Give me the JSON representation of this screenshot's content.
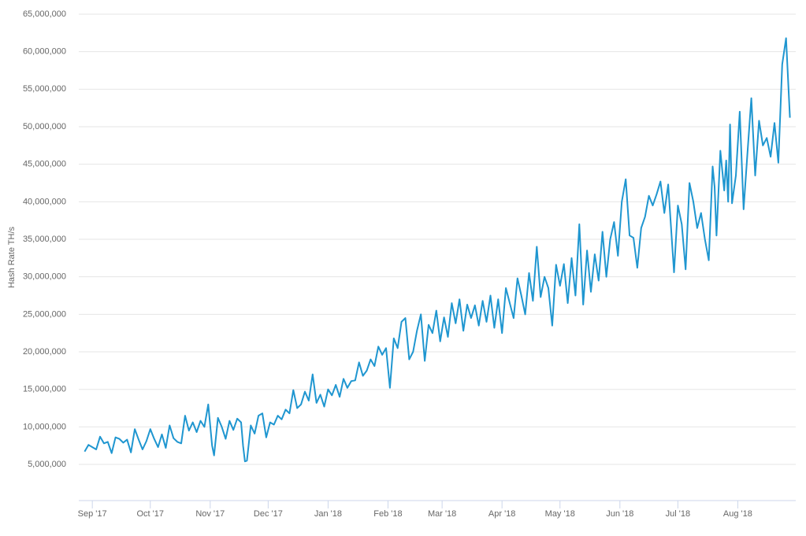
{
  "chart_data": {
    "type": "line",
    "y_label": "Hash Rate TH/s",
    "x": [
      -4,
      -2,
      0,
      2,
      4,
      6,
      8,
      10,
      12,
      14,
      16,
      18,
      20,
      22,
      24,
      26,
      28,
      30,
      32,
      34,
      36,
      38,
      40,
      42,
      44,
      46,
      48,
      50,
      52,
      54,
      56,
      58,
      60,
      62,
      63,
      65,
      67,
      69,
      71,
      73,
      75,
      77,
      78,
      79,
      80,
      82,
      84,
      86,
      88,
      90,
      92,
      94,
      96,
      98,
      100,
      102,
      104,
      106,
      108,
      110,
      112,
      114,
      116,
      118,
      120,
      122,
      124,
      126,
      128,
      130,
      132,
      134,
      136,
      138,
      140,
      142,
      144,
      146,
      148,
      150,
      152,
      154,
      156,
      158,
      160,
      162,
      164,
      166,
      168,
      170,
      172,
      174,
      176,
      178,
      180,
      182,
      184,
      186,
      188,
      190,
      192,
      194,
      196,
      198,
      200,
      202,
      204,
      206,
      208,
      210,
      212,
      214,
      216,
      218,
      220,
      222,
      224,
      226,
      228,
      230,
      232,
      234,
      236,
      238,
      240,
      242,
      244,
      246,
      248,
      250,
      252,
      254,
      256,
      258,
      260,
      262,
      264,
      266,
      268,
      270,
      272,
      274,
      276,
      278,
      280,
      282,
      284,
      286,
      288,
      290,
      292,
      294,
      296,
      298,
      300,
      301,
      303,
      305,
      307,
      309,
      311,
      313,
      315,
      317,
      319,
      321,
      322,
      323,
      325,
      327,
      328,
      329,
      330,
      331,
      333,
      335,
      337,
      339,
      341,
      343,
      345,
      347,
      349,
      351,
      353,
      355,
      357,
      359,
      361
    ],
    "series": [
      {
        "name": "Hash Rate",
        "color": "#1f96d0",
        "values": [
          6700000,
          7600000,
          7300000,
          7000000,
          8700000,
          7800000,
          8000000,
          6500000,
          8600000,
          8400000,
          7900000,
          8300000,
          6600000,
          9700000,
          8300000,
          7000000,
          8100000,
          9700000,
          8400000,
          7300000,
          9000000,
          7200000,
          10200000,
          8500000,
          8000000,
          7800000,
          11500000,
          9500000,
          10600000,
          9300000,
          10800000,
          10000000,
          13000000,
          7500000,
          6200000,
          11200000,
          10000000,
          8400000,
          10800000,
          9600000,
          11100000,
          10600000,
          7500000,
          5400000,
          5500000,
          10200000,
          9100000,
          11500000,
          11800000,
          8600000,
          10600000,
          10300000,
          11500000,
          11000000,
          12300000,
          11800000,
          14900000,
          12500000,
          13000000,
          14700000,
          13500000,
          17000000,
          13200000,
          14300000,
          12700000,
          15000000,
          14200000,
          15600000,
          14000000,
          16400000,
          15200000,
          16100000,
          16200000,
          18600000,
          16800000,
          17500000,
          19000000,
          18100000,
          20700000,
          19600000,
          20500000,
          15200000,
          21800000,
          20500000,
          24000000,
          24500000,
          19000000,
          20000000,
          22800000,
          25000000,
          18800000,
          23600000,
          22500000,
          25500000,
          21400000,
          24600000,
          22000000,
          26500000,
          23800000,
          27000000,
          22800000,
          26300000,
          24500000,
          26200000,
          23500000,
          26800000,
          24000000,
          27500000,
          23200000,
          27000000,
          22500000,
          28500000,
          26500000,
          24500000,
          29800000,
          27500000,
          25000000,
          30500000,
          26800000,
          34000000,
          27300000,
          30000000,
          28500000,
          23500000,
          31600000,
          28800000,
          31700000,
          26500000,
          32500000,
          27500000,
          37000000,
          26300000,
          33500000,
          28000000,
          33000000,
          29500000,
          36000000,
          30000000,
          35000000,
          37300000,
          32800000,
          40000000,
          43000000,
          35500000,
          35200000,
          31200000,
          36500000,
          38000000,
          40800000,
          39500000,
          41000000,
          42700000,
          38500000,
          42300000,
          34500000,
          30600000,
          39500000,
          37000000,
          31000000,
          42500000,
          40000000,
          36500000,
          38500000,
          35000000,
          32200000,
          44700000,
          42000000,
          35500000,
          46800000,
          41500000,
          45500000,
          40000000,
          50300000,
          39800000,
          43500000,
          52000000,
          39000000,
          46500000,
          53800000,
          43500000,
          50800000,
          47500000,
          48500000,
          46000000,
          50500000,
          45200000,
          58300000,
          61800000,
          51200000
        ]
      }
    ],
    "xlim": [
      -7,
      364
    ],
    "xticks": [
      {
        "value": 0,
        "label": "Sep '17"
      },
      {
        "value": 30,
        "label": "Oct '17"
      },
      {
        "value": 61,
        "label": "Nov '17"
      },
      {
        "value": 91,
        "label": "Dec '17"
      },
      {
        "value": 122,
        "label": "Jan '18"
      },
      {
        "value": 153,
        "label": "Feb '18"
      },
      {
        "value": 181,
        "label": "Mar '18"
      },
      {
        "value": 212,
        "label": "Apr '18"
      },
      {
        "value": 242,
        "label": "May '18"
      },
      {
        "value": 273,
        "label": "Jun '18"
      },
      {
        "value": 303,
        "label": "Jul '18"
      },
      {
        "value": 334,
        "label": "Aug '18"
      }
    ],
    "ylim": [
      0,
      65000000
    ],
    "yticks": [
      {
        "value": 5000000,
        "label": "5,000,000"
      },
      {
        "value": 10000000,
        "label": "10,000,000"
      },
      {
        "value": 15000000,
        "label": "15,000,000"
      },
      {
        "value": 20000000,
        "label": "20,000,000"
      },
      {
        "value": 25000000,
        "label": "25,000,000"
      },
      {
        "value": 30000000,
        "label": "30,000,000"
      },
      {
        "value": 35000000,
        "label": "35,000,000"
      },
      {
        "value": 40000000,
        "label": "40,000,000"
      },
      {
        "value": 45000000,
        "label": "45,000,000"
      },
      {
        "value": 50000000,
        "label": "50,000,000"
      },
      {
        "value": 55000000,
        "label": "55,000,000"
      },
      {
        "value": 60000000,
        "label": "60,000,000"
      },
      {
        "value": 65000000,
        "label": "65,000,000"
      }
    ],
    "grid": true
  }
}
